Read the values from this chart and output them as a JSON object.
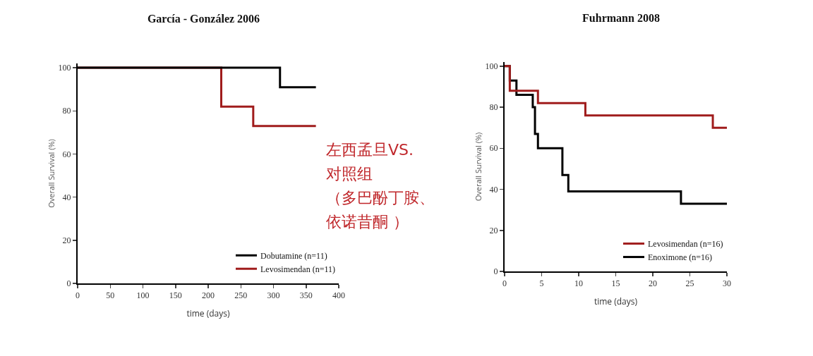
{
  "chart_data": [
    {
      "type": "step",
      "title": "García - González 2006",
      "xlabel": "time (days)",
      "ylabel": "Overall Survival (%)",
      "xlim": [
        0,
        400
      ],
      "xticks": [
        0,
        50,
        100,
        150,
        200,
        250,
        300,
        350,
        400
      ],
      "ylim": [
        0,
        102
      ],
      "yticks": [
        0,
        20,
        40,
        60,
        80,
        100
      ],
      "grid": false,
      "legend": "bottom right",
      "series": [
        {
          "name": "Dobutamine (n=11)",
          "color": "#000000",
          "x": [
            0,
            310,
            365
          ],
          "values": [
            100,
            91,
            91
          ]
        },
        {
          "name": "Levosimendan (n=11)",
          "color": "#a01c1c",
          "x": [
            0,
            220,
            269,
            365
          ],
          "values": [
            100,
            82,
            73,
            73
          ]
        }
      ]
    },
    {
      "type": "other",
      "annotations": [
        "左西孟旦VS.",
        "对照组",
        "（多巴酚丁胺、",
        "依诺昔酮 ）"
      ]
    },
    {
      "type": "step",
      "title": "Fuhrmann 2008",
      "xlabel": "time (days)",
      "ylabel": "Overall Survival (%)",
      "xlim": [
        0,
        30
      ],
      "xticks": [
        0,
        5,
        10,
        15,
        20,
        25,
        30
      ],
      "ylim": [
        0,
        102
      ],
      "yticks": [
        0,
        20,
        40,
        60,
        80,
        100
      ],
      "grid": false,
      "legend": "bottom right",
      "series": [
        {
          "name": "Levosimendan (n=16)",
          "color": "#a01c1c",
          "x": [
            0,
            0.7,
            4.5,
            10.9,
            28.1,
            30
          ],
          "values": [
            100,
            88,
            82,
            76,
            70,
            70
          ]
        },
        {
          "name": "Enoximone (n=16)",
          "color": "#000000",
          "x": [
            0,
            0.7,
            1.6,
            3.8,
            4.1,
            4.5,
            7.8,
            8.6,
            23.8,
            30
          ],
          "values": [
            100,
            93,
            86,
            80,
            67,
            60,
            47,
            39,
            33,
            33
          ]
        }
      ]
    }
  ]
}
